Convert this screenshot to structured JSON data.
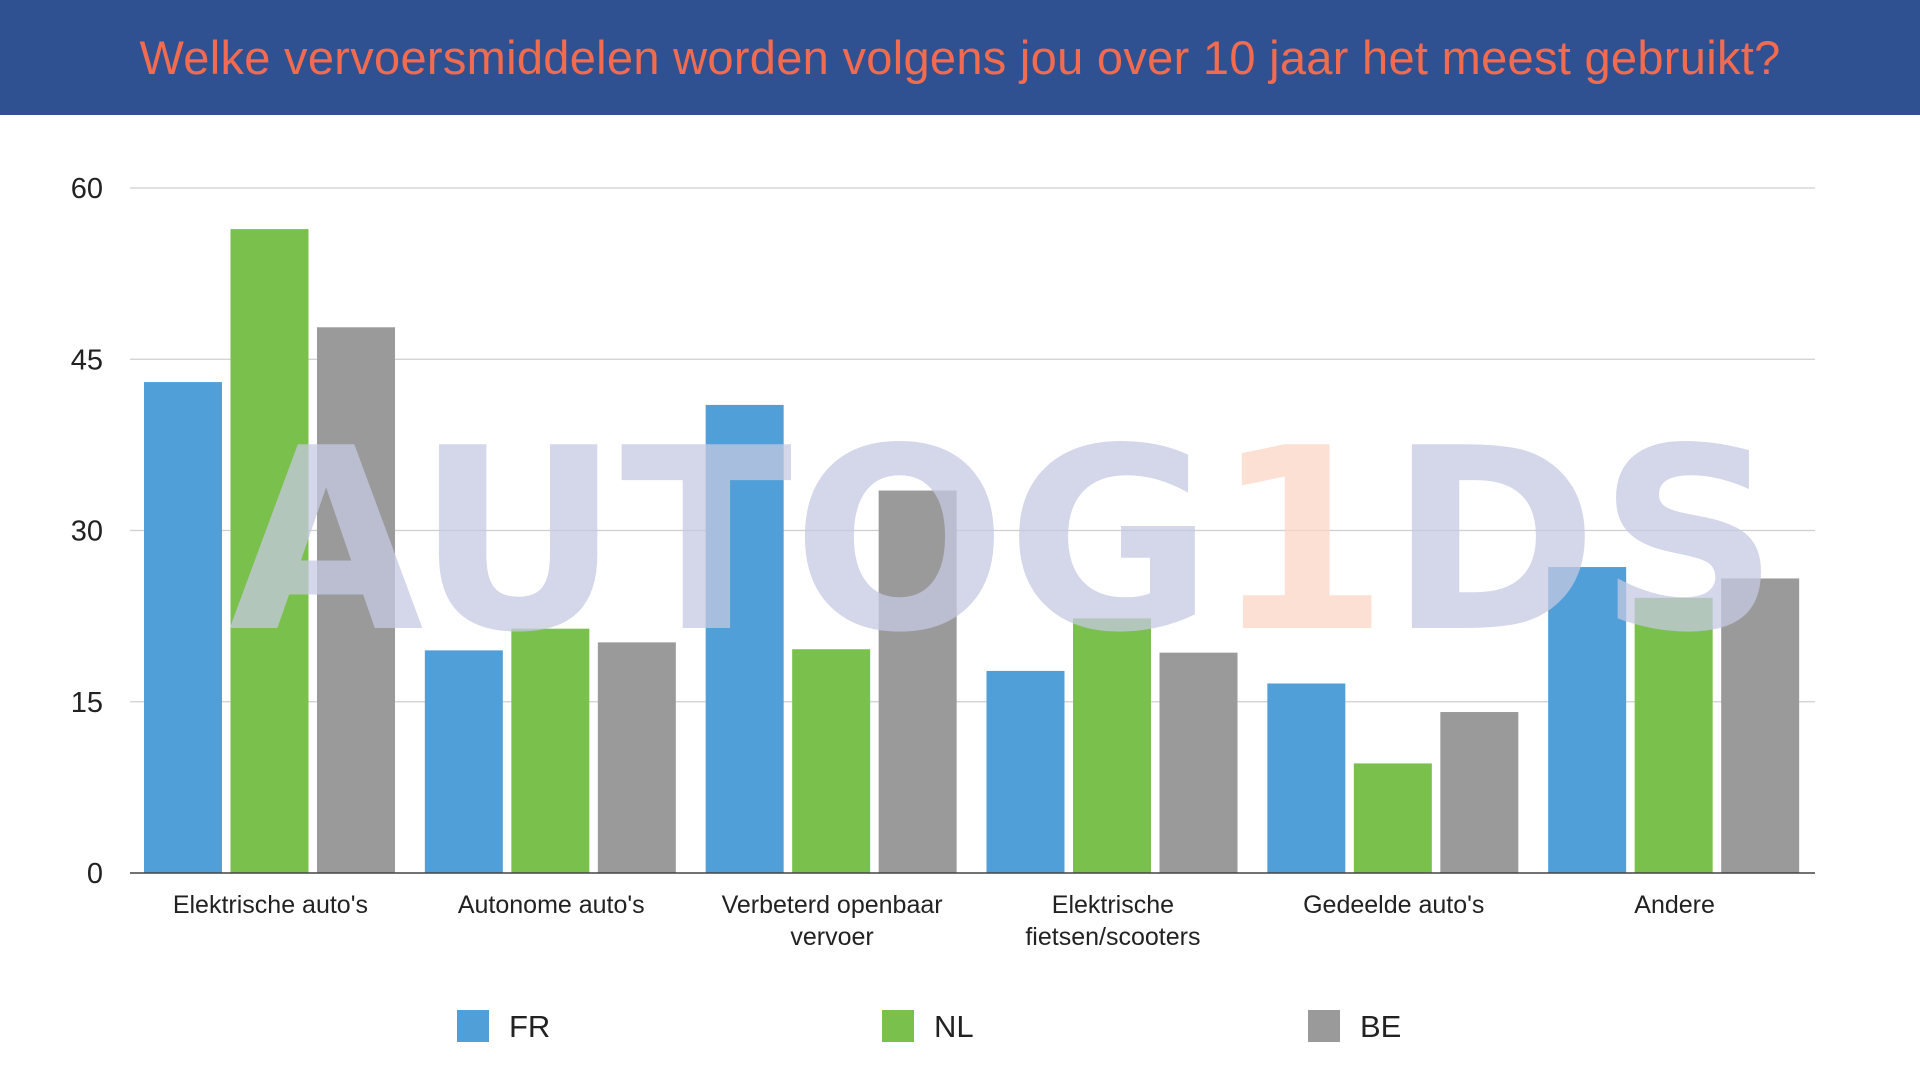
{
  "title": "Welke vervoersmiddelen worden volgens jou over 10 jaar het meest gebruikt?",
  "watermark": {
    "prefix": "AUTOG",
    "highlight": "1",
    "suffix": "DS"
  },
  "colors": {
    "header_bg": "#2f5191",
    "title_text": "#f26b4f",
    "watermark_main": "#c5c8e2",
    "watermark_accent": "#f9d5c4"
  },
  "chart_data": {
    "type": "bar",
    "categories": [
      [
        "Elektrische auto's"
      ],
      [
        "Autonome auto's"
      ],
      [
        "Verbeterd openbaar",
        "vervoer"
      ],
      [
        "Elektrische",
        "fietsen/scooters"
      ],
      [
        "Gedeelde auto's"
      ],
      [
        "Andere"
      ]
    ],
    "series": [
      {
        "name": "FR",
        "color": "#519fd8",
        "values": [
          43,
          19.5,
          41,
          17.7,
          16.6,
          26.8
        ]
      },
      {
        "name": "NL",
        "color": "#7ac04c",
        "values": [
          56.4,
          21.4,
          19.6,
          22.3,
          9.6,
          24.1
        ]
      },
      {
        "name": "BE",
        "color": "#9a9a9a",
        "values": [
          47.8,
          20.2,
          33.5,
          19.3,
          14.1,
          25.8
        ]
      }
    ],
    "yticks": [
      "0",
      "15",
      "30",
      "45",
      "60"
    ],
    "ylim": [
      0,
      60
    ],
    "grid": true,
    "legend": "bottom"
  }
}
